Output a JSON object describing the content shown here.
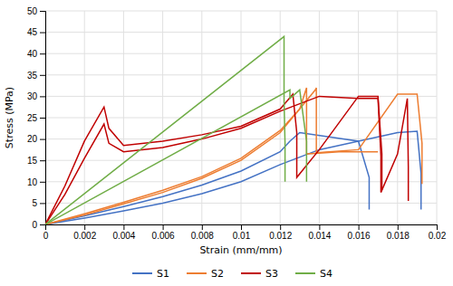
{
  "chart_data": {
    "type": "line",
    "xlabel": "Strain (mm/mm)",
    "ylabel": "Stress (MPa)",
    "xlim": [
      0,
      0.02
    ],
    "ylim": [
      0,
      50
    ],
    "xticks": [
      0,
      0.002,
      0.004,
      0.006,
      0.008,
      0.01,
      0.012,
      0.014,
      0.016,
      0.018,
      0.02
    ],
    "yticks": [
      0,
      5,
      10,
      15,
      20,
      25,
      30,
      35,
      40,
      45,
      50
    ],
    "grid": true,
    "legend": "bottom",
    "series": [
      {
        "name": "S1",
        "color": "#4472C4",
        "curves": [
          {
            "x": [
              0,
              0.002,
              0.004,
              0.006,
              0.008,
              0.01,
              0.012,
              0.0125,
              0.013,
              0.016,
              0.01655,
              0.01655,
              0.01655
            ],
            "values": [
              0,
              2.0,
              4.2,
              6.5,
              9.2,
              12.5,
              17.0,
              19.5,
              21.5,
              19.5,
              11.0,
              11.0,
              3.5
            ]
          },
          {
            "x": [
              0,
              0.002,
              0.004,
              0.006,
              0.008,
              0.01,
              0.012,
              0.014,
              0.016,
              0.018,
              0.019,
              0.0192,
              0.0192,
              0.0192
            ],
            "values": [
              0,
              1.5,
              3.2,
              5.0,
              7.2,
              10.0,
              14.0,
              17.5,
              19.5,
              21.5,
              21.8,
              12.0,
              12.0,
              3.5
            ]
          }
        ]
      },
      {
        "name": "S2",
        "color": "#ED7D31",
        "curves": [
          {
            "x": [
              0,
              0.002,
              0.004,
              0.006,
              0.008,
              0.01,
              0.012,
              0.013,
              0.01335,
              0.01335,
              0.01335,
              0.01335,
              0.015,
              0.017
            ],
            "values": [
              0,
              2.5,
              5.2,
              8.0,
              11.2,
              15.5,
              22.0,
              27.0,
              32.0,
              32.0,
              16.5,
              16.5,
              17.0,
              17.0
            ]
          },
          {
            "x": [
              0,
              0.002,
              0.004,
              0.006,
              0.008,
              0.01,
              0.012,
              0.0138,
              0.01385,
              0.01385,
              0.01385,
              0.01385,
              0.016,
              0.018,
              0.019,
              0.01925,
              0.01925,
              0.01925
            ],
            "values": [
              0,
              2.2,
              4.8,
              7.5,
              10.8,
              15.0,
              21.5,
              31.5,
              32.0,
              32.0,
              16.8,
              16.8,
              17.5,
              30.5,
              30.5,
              19.0,
              19.0,
              9.5
            ]
          }
        ]
      },
      {
        "name": "S3",
        "color": "#C00000",
        "curves": [
          {
            "x": [
              0,
              0.001,
              0.002,
              0.003,
              0.00325,
              0.00325,
              0.004,
              0.006,
              0.008,
              0.01,
              0.012,
              0.01265,
              0.01285,
              0.01285,
              0.01285,
              0.01285,
              0.014,
              0.016,
              0.017,
              0.0172,
              0.0172,
              0.0172
            ],
            "values": [
              0,
              9.0,
              19.5,
              27.5,
              22.5,
              22.5,
              18.5,
              19.5,
              21.0,
              23.0,
              27.0,
              30.5,
              21.5,
              21.5,
              11.0,
              11.0,
              17.5,
              30.0,
              30.0,
              16.5,
              16.5,
              8.0
            ]
          },
          {
            "x": [
              0,
              0.001,
              0.002,
              0.003,
              0.00325,
              0.00325,
              0.004,
              0.006,
              0.008,
              0.01,
              0.012,
              0.014,
              0.016,
              0.017,
              0.01715,
              0.01715,
              0.01715,
              0.01715,
              0.018,
              0.0185,
              0.01855,
              0.01855,
              0.01855
            ],
            "values": [
              0,
              7.0,
              15.5,
              23.5,
              19.0,
              19.0,
              17.0,
              18.0,
              20.0,
              22.5,
              26.5,
              30.0,
              29.5,
              29.5,
              16.0,
              16.0,
              7.5,
              7.5,
              16.5,
              29.5,
              13.5,
              13.5,
              5.5
            ]
          }
        ]
      },
      {
        "name": "S4",
        "color": "#70AD47",
        "curves": [
          {
            "x": [
              0,
              0.0122,
              0.0122,
              0.0122,
              0.0122,
              0.01225,
              0.01225,
              0.01225
            ],
            "values": [
              0,
              44.0,
              44.0,
              29.0,
              29.0,
              19.0,
              19.0,
              10.0
            ]
          },
          {
            "x": [
              0,
              0.0125,
              0.0125,
              0.0125,
              0.0125,
              0.013,
              0.01335,
              0.01335,
              0.01335
            ],
            "values": [
              0,
              31.5,
              31.5,
              29.5,
              29.5,
              31.5,
              19.5,
              19.5,
              10.0
            ]
          }
        ]
      }
    ]
  }
}
